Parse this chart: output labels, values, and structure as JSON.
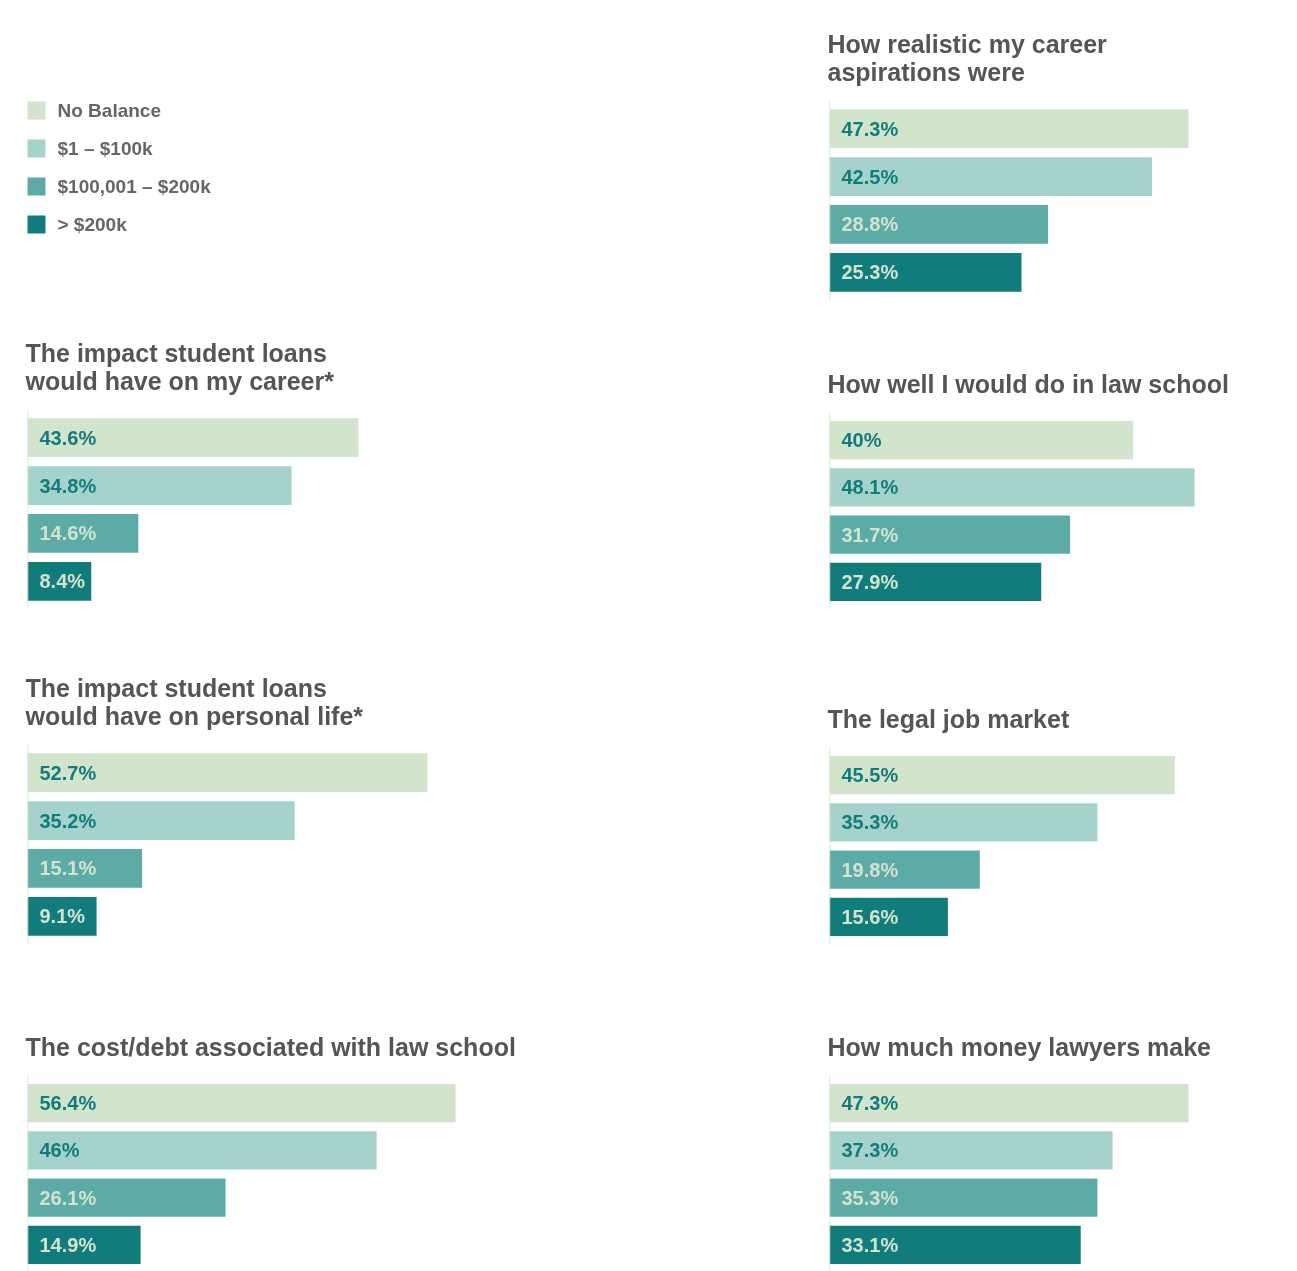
{
  "chart_data": [
    {
      "type": "other",
      "categories": [
        "No Balance",
        "$1 – $100k",
        "$100,001 – $200k",
        "> $200k"
      ],
      "colors": [
        "#d2e4cc",
        "#a5d3cb",
        "#5daba7",
        "#127c7d"
      ]
    },
    {
      "type": "bar",
      "orientation": "horizontal",
      "title": "How realistic my career\naspirations were",
      "categories": [
        null,
        null,
        null,
        null
      ],
      "values": [
        47.3,
        42.5,
        28.8,
        25.3
      ],
      "value_labels": [
        "47.3%",
        "42.5%",
        "28.8%",
        "25.3%"
      ],
      "colors": [
        "#d2e4cc",
        "#a5d3cb",
        "#5daba7",
        "#127c7d"
      ]
    },
    {
      "type": "bar",
      "orientation": "horizontal",
      "title": "The impact student loans\nwould have on my career*",
      "categories": [
        null,
        null,
        null,
        null
      ],
      "values": [
        43.6,
        34.8,
        14.6,
        8.4
      ],
      "value_labels": [
        "43.6%",
        "34.8%",
        "14.6%",
        "8.4%"
      ],
      "colors": [
        "#d2e4cc",
        "#a5d3cb",
        "#5daba7",
        "#127c7d"
      ]
    },
    {
      "type": "bar",
      "orientation": "horizontal",
      "title": "How well I would do in law school",
      "categories": [
        null,
        null,
        null,
        null
      ],
      "values": [
        40,
        48.1,
        31.7,
        27.9
      ],
      "value_labels": [
        "40%",
        "48.1%",
        "31.7%",
        "27.9%"
      ],
      "colors": [
        "#d2e4cc",
        "#a5d3cb",
        "#5daba7",
        "#127c7d"
      ]
    },
    {
      "type": "bar",
      "orientation": "horizontal",
      "title": "The impact student loans\nwould have on personal life*",
      "categories": [
        null,
        null,
        null,
        null
      ],
      "values": [
        52.7,
        35.2,
        15.1,
        9.1
      ],
      "value_labels": [
        "52.7%",
        "35.2%",
        "15.1%",
        "9.1%"
      ],
      "colors": [
        "#d2e4cc",
        "#a5d3cb",
        "#5daba7",
        "#127c7d"
      ]
    },
    {
      "type": "bar",
      "orientation": "horizontal",
      "title": "The legal job market",
      "categories": [
        null,
        null,
        null,
        null
      ],
      "values": [
        45.5,
        35.3,
        19.8,
        15.6
      ],
      "value_labels": [
        "45.5%",
        "35.3%",
        "19.8%",
        "15.6%"
      ],
      "colors": [
        "#d2e4cc",
        "#a5d3cb",
        "#5daba7",
        "#127c7d"
      ]
    },
    {
      "type": "bar",
      "orientation": "horizontal",
      "title": "The cost/debt associated with law school",
      "categories": [
        null,
        null,
        null,
        null
      ],
      "values": [
        56.4,
        46,
        26.1,
        14.9
      ],
      "value_labels": [
        "56.4%",
        "46%",
        "26.1%",
        "14.9%"
      ],
      "colors": [
        "#d2e4cc",
        "#a5d3cb",
        "#5daba7",
        "#127c7d"
      ]
    },
    {
      "type": "bar",
      "orientation": "horizontal",
      "title": "How much money lawyers make",
      "categories": [
        null,
        null,
        null,
        null
      ],
      "values": [
        47.3,
        37.3,
        35.3,
        33.1
      ],
      "value_labels": [
        "47.3%",
        "37.3%",
        "35.3%",
        "33.1%"
      ],
      "colors": [
        "#d2e4cc",
        "#a5d3cb",
        "#5daba7",
        "#127c7d"
      ]
    }
  ]
}
